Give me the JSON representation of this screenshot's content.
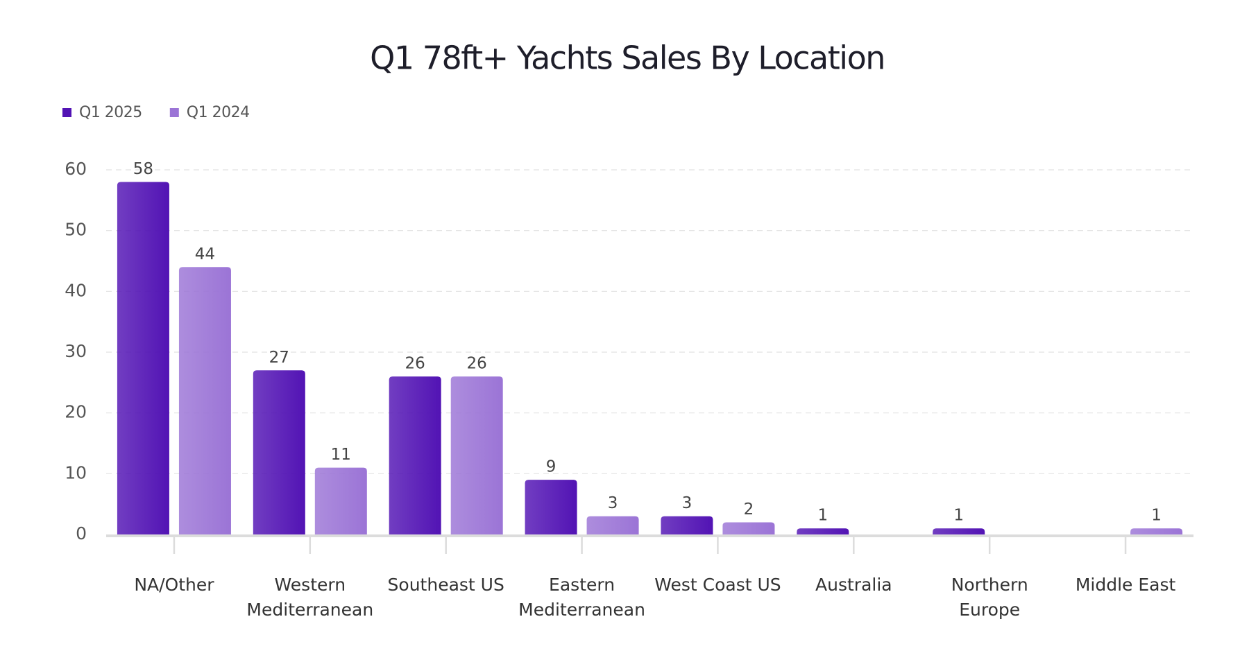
{
  "chart_data": {
    "type": "bar",
    "title": "Q1 78ft+ Yachts Sales By Location",
    "categories": [
      "NA/Other",
      "Western Mediterranean",
      "Southeast US",
      "Eastern Mediterranean",
      "West Coast US",
      "Australia",
      "Northern Europe",
      "Middle East"
    ],
    "series": [
      {
        "name": "Q1 2025",
        "color": "#5213b4",
        "values": [
          58,
          27,
          26,
          9,
          3,
          1,
          1,
          null
        ]
      },
      {
        "name": "Q1 2024",
        "color": "#9b74d6",
        "values": [
          44,
          11,
          26,
          3,
          2,
          null,
          null,
          1
        ]
      }
    ],
    "ylim": [
      0,
      60
    ],
    "yticks": [
      0,
      10,
      20,
      30,
      40,
      50,
      60
    ],
    "grid": true,
    "legend": "top-left"
  }
}
